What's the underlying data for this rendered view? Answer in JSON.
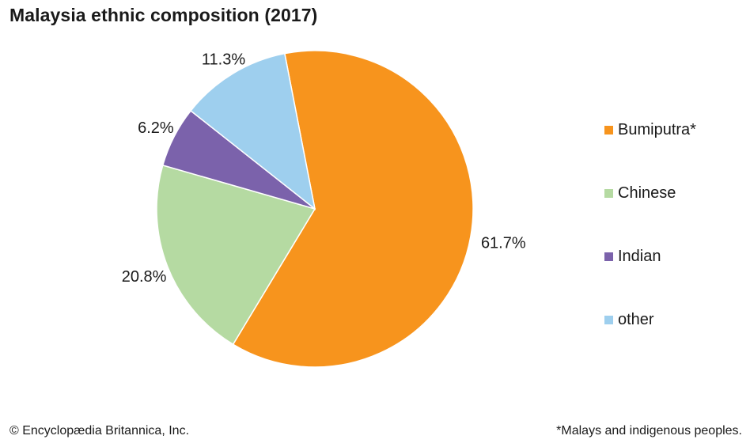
{
  "title": "Malaysia ethnic composition (2017)",
  "footer": {
    "credit": "© Encyclopædia Britannica, Inc.",
    "note": "*Malays and indigenous peoples."
  },
  "chart_data": {
    "type": "pie",
    "title": "Malaysia ethnic composition (2017)",
    "legend_position": "right",
    "slices": [
      {
        "label": "Bumiputra*",
        "value": 61.7,
        "value_label": "61.7%",
        "color": "#f7941d"
      },
      {
        "label": "Chinese",
        "value": 20.8,
        "value_label": "20.8%",
        "color": "#b5daa2"
      },
      {
        "label": "Indian",
        "value": 6.2,
        "value_label": "6.2%",
        "color": "#7b62ab"
      },
      {
        "label": "other",
        "value": 11.3,
        "value_label": "11.3%",
        "color": "#9ecfee"
      }
    ]
  }
}
